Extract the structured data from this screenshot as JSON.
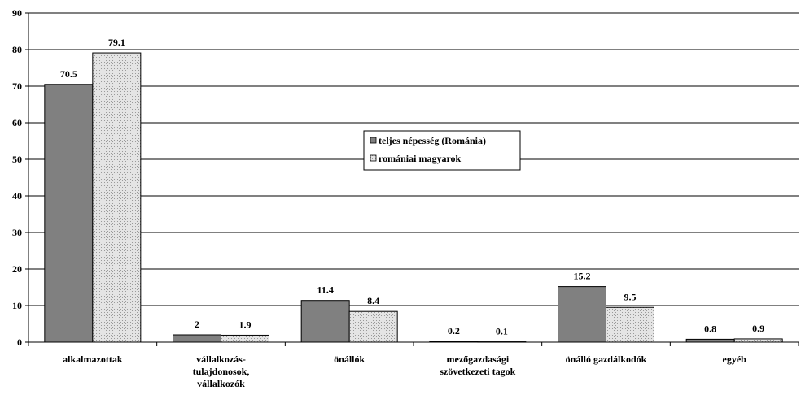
{
  "chart_data": {
    "type": "bar",
    "categories": [
      [
        "alkalmazottak"
      ],
      [
        "vállalkozás-",
        "tulajdonosok,",
        "vállalkozók"
      ],
      [
        "önállók"
      ],
      [
        "mezőgazdasági",
        "szövetkezeti tagok"
      ],
      [
        "önálló gazdálkodók"
      ],
      [
        "egyéb"
      ]
    ],
    "series": [
      {
        "name": "teljes népesség (Románia)",
        "values": [
          70.5,
          2,
          11.4,
          0.2,
          15.2,
          0.8
        ],
        "value_labels": [
          "70.5",
          "2",
          "11.4",
          "0.2",
          "15.2",
          "0.8"
        ],
        "color": "#808080",
        "pattern": "solid"
      },
      {
        "name": "romániai magyarok",
        "values": [
          79.1,
          1.9,
          8.4,
          0.1,
          9.5,
          0.9
        ],
        "value_labels": [
          "79.1",
          "1.9",
          "8.4",
          "0.1",
          "9.5",
          "0.9"
        ],
        "color": "#d9d9d9",
        "pattern": "dotted"
      }
    ],
    "ylim": [
      0,
      90
    ],
    "yticks": [
      0,
      10,
      20,
      30,
      40,
      50,
      60,
      70,
      80,
      90
    ],
    "grid": true,
    "legend": "center-right"
  }
}
